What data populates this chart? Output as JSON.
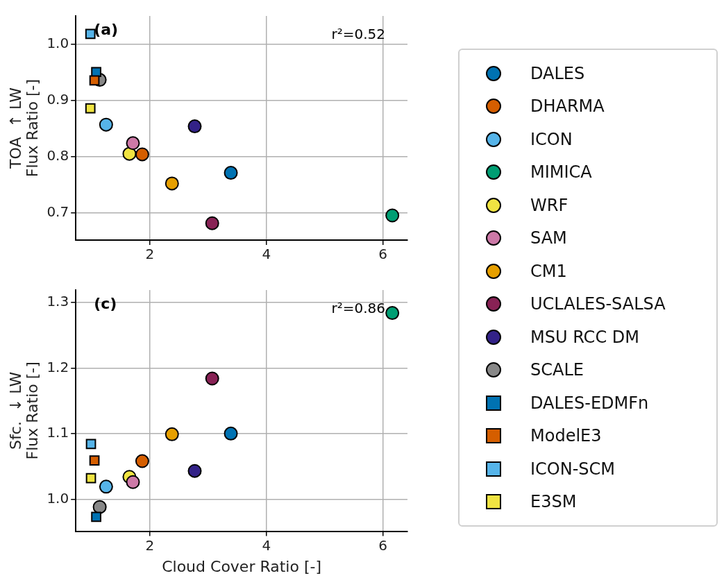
{
  "chart_data": [
    {
      "type": "scatter",
      "ylabel": "TOA  ↑ LW\nFlux Ratio [-]",
      "annotations": [
        "(a)",
        "r²=0.52"
      ],
      "xlim": [
        0.73,
        6.42
      ],
      "xticks": [
        2,
        4,
        6
      ],
      "ylim": [
        0.651,
        1.051
      ],
      "yticks": [
        0.7,
        0.8,
        0.9,
        {
          "value": 1,
          "label": "1.0"
        }
      ],
      "grid": true,
      "legend": "right",
      "series": [
        {
          "name": "DALES",
          "color": "#0072b2",
          "marker": "circle",
          "x": [
            3.39
          ],
          "values": [
            0.771
          ]
        },
        {
          "name": "DHARMA",
          "color": "#d55e00",
          "marker": "circle",
          "x": [
            1.87
          ],
          "values": [
            0.804
          ]
        },
        {
          "name": "ICON",
          "color": "#56b4e9",
          "marker": "circle",
          "x": [
            1.25
          ],
          "values": [
            0.857
          ]
        },
        {
          "name": "MIMICA",
          "color": "#009e73",
          "marker": "circle",
          "x": [
            6.16
          ],
          "values": [
            0.695
          ]
        },
        {
          "name": "WRF",
          "color": "#f0e442",
          "marker": "circle",
          "x": [
            1.65
          ],
          "values": [
            0.805
          ]
        },
        {
          "name": "SAM",
          "color": "#cc79a7",
          "marker": "circle",
          "x": [
            1.71
          ],
          "values": [
            0.824
          ]
        },
        {
          "name": "CM1",
          "color": "#e69f00",
          "marker": "circle",
          "x": [
            2.38
          ],
          "values": [
            0.752
          ]
        },
        {
          "name": "UCLALES-SALSA",
          "color": "#882255",
          "marker": "circle",
          "x": [
            3.07
          ],
          "values": [
            0.681
          ]
        },
        {
          "name": "MSU RCC DM",
          "color": "#332288",
          "marker": "circle",
          "x": [
            2.77
          ],
          "values": [
            0.854
          ]
        },
        {
          "name": "SCALE",
          "color": "#888888",
          "marker": "circle",
          "x": [
            1.14
          ],
          "values": [
            0.937
          ]
        },
        {
          "name": "DALES-EDMFn",
          "color": "#0072b2",
          "marker": "square",
          "x": [
            1.08
          ],
          "values": [
            0.951
          ]
        },
        {
          "name": "ModelE3",
          "color": "#d55e00",
          "marker": "square",
          "x": [
            1.05
          ],
          "values": [
            0.936
          ]
        },
        {
          "name": "ICON-SCM",
          "color": "#56b4e9",
          "marker": "square",
          "x": [
            0.98
          ],
          "values": [
            1.019
          ]
        },
        {
          "name": "E3SM",
          "color": "#f0e442",
          "marker": "square",
          "x": [
            0.98
          ],
          "values": [
            0.886
          ]
        }
      ]
    },
    {
      "type": "scatter",
      "xlabel": "Cloud Cover Ratio [-]",
      "ylabel": "Sfc.  ↓ LW\nFlux Ratio [-]",
      "annotations": [
        "(c)",
        "r²=0.86"
      ],
      "xlim": [
        0.73,
        6.42
      ],
      "xticks": [
        2,
        4,
        6
      ],
      "ylim": [
        0.951,
        1.319
      ],
      "yticks": [
        {
          "value": 1,
          "label": "1.0"
        },
        1.1,
        1.2,
        1.3
      ],
      "grid": true,
      "series": [
        {
          "color": "#0072b2",
          "marker": "circle",
          "x": [
            3.39
          ],
          "values": [
            1.1
          ]
        },
        {
          "color": "#d55e00",
          "marker": "circle",
          "x": [
            1.87
          ],
          "values": [
            1.058
          ]
        },
        {
          "color": "#56b4e9",
          "marker": "circle",
          "x": [
            1.25
          ],
          "values": [
            1.019
          ]
        },
        {
          "color": "#009e73",
          "marker": "circle",
          "x": [
            6.16
          ],
          "values": [
            1.284
          ]
        },
        {
          "color": "#f0e442",
          "marker": "circle",
          "x": [
            1.65
          ],
          "values": [
            1.034
          ]
        },
        {
          "color": "#cc79a7",
          "marker": "circle",
          "x": [
            1.71
          ],
          "values": [
            1.026
          ]
        },
        {
          "color": "#e69f00",
          "marker": "circle",
          "x": [
            2.38
          ],
          "values": [
            1.099
          ]
        },
        {
          "color": "#882255",
          "marker": "circle",
          "x": [
            3.07
          ],
          "values": [
            1.184
          ]
        },
        {
          "color": "#332288",
          "marker": "circle",
          "x": [
            2.77
          ],
          "values": [
            1.043
          ]
        },
        {
          "color": "#888888",
          "marker": "circle",
          "x": [
            1.14
          ],
          "values": [
            0.988
          ]
        },
        {
          "color": "#0072b2",
          "marker": "square",
          "x": [
            1.08
          ],
          "values": [
            0.973
          ]
        },
        {
          "color": "#d55e00",
          "marker": "square",
          "x": [
            1.05
          ],
          "values": [
            1.059
          ]
        },
        {
          "color": "#56b4e9",
          "marker": "square",
          "x": [
            0.99
          ],
          "values": [
            1.084
          ]
        },
        {
          "color": "#f0e442",
          "marker": "square",
          "x": [
            0.99
          ],
          "values": [
            1.032
          ]
        }
      ]
    }
  ]
}
